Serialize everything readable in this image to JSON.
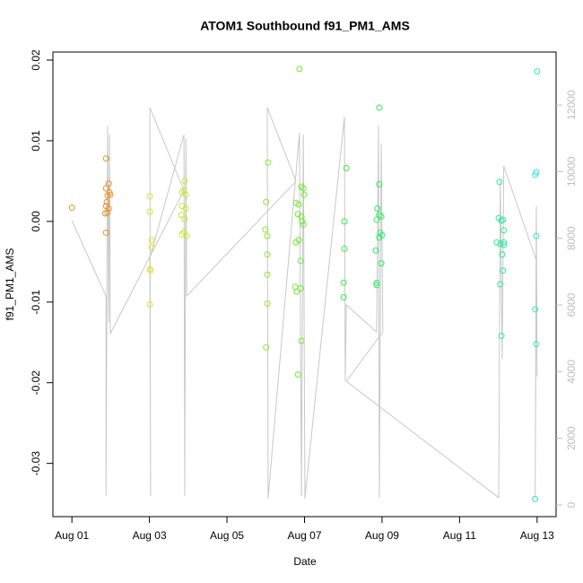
{
  "chart_data": {
    "type": "scatter",
    "title": "ATOM1 Southbound f91_PM1_AMS",
    "x_label": "Date",
    "y_label": "f91_PM1_AMS",
    "xlim": [
      -0.49,
      12.49
    ],
    "ylim": [
      -0.0366,
      0.021
    ],
    "y2lim": [
      -350,
      13590
    ],
    "xticks": [
      {
        "value": 0,
        "label": "Aug 01"
      },
      {
        "value": 2,
        "label": "Aug 03"
      },
      {
        "value": 4,
        "label": "Aug 05"
      },
      {
        "value": 6,
        "label": "Aug 07"
      },
      {
        "value": 8,
        "label": "Aug 09"
      },
      {
        "value": 10,
        "label": "Aug 11"
      },
      {
        "value": 12,
        "label": "Aug 13"
      }
    ],
    "yticks": [
      -0.03,
      -0.02,
      -0.01,
      {
        "value": 0,
        "label": "0.00"
      },
      0.01,
      0.02
    ],
    "y2ticks": [
      0,
      2000,
      4000,
      6000,
      8000,
      10000,
      12000
    ],
    "y2_color": "#bebebe",
    "series": [
      {
        "axis": "y2",
        "color": "#c8c8c8",
        "x": [
          0,
          0.88,
          0.88,
          0.92,
          0.95,
          0.97,
          0.99,
          2.89,
          2.01,
          2.03,
          2.01,
          2.89,
          2.91,
          2.94,
          2.96,
          5.78,
          5.04,
          5.06,
          5.87,
          5.92,
          5.97,
          6.01,
          7.03,
          7.05,
          7.08,
          7.86,
          7.91,
          7.93,
          7.98,
          8.02,
          7.08,
          11.01,
          11.05,
          11.1,
          11.14,
          11.98,
          11.95,
          11.98,
          12.0
        ],
        "values": [
          8530,
          6270,
          270,
          11380,
          5460,
          11110,
          5140,
          9440,
          11920,
          270,
          7400,
          11110,
          270,
          10980,
          6270,
          9710,
          11920,
          190,
          11160,
          270,
          11110,
          190,
          11650,
          3710,
          6000,
          5190,
          11380,
          220,
          10840,
          5190,
          3710,
          220,
          9770,
          4390,
          10170,
          7340,
          220,
          8960,
          3850
        ]
      },
      {
        "color": "#e8902a",
        "x": [
          0,
          0.88,
          0.95,
          0.88,
          0.97,
          0.92,
          0.99,
          0.9,
          0.88,
          0.95,
          0.86,
          0.92,
          0.88
        ],
        "values": [
          0.0017,
          0.0078,
          0.0047,
          0.0041,
          0.0036,
          0.0032,
          0.0033,
          0.0024,
          0.0019,
          0.0016,
          0.001,
          0.0011,
          -0.0014
        ]
      },
      {
        "color": "#e0e030",
        "x": [
          2.01,
          2.01,
          2.06,
          2.06,
          2.01,
          2.03,
          2.01
        ],
        "values": [
          0.0031,
          0.0012,
          -0.0023,
          -0.0032,
          -0.0059,
          -0.0061,
          -0.0103
        ]
      },
      {
        "color": "#cce830",
        "x": [
          2.91,
          2.89,
          2.84,
          2.94,
          2.84,
          2.94,
          2.82,
          2.91,
          2.89,
          2.84,
          2.96
        ],
        "values": [
          0.005,
          0.0038,
          0.0036,
          0.0033,
          0.0019,
          0.0016,
          0.0008,
          0.0003,
          -0.0013,
          -0.0016,
          -0.0018
        ]
      },
      {
        "color": "#90e830",
        "x": [
          5.06,
          5.01,
          4.99,
          5.04,
          5.04,
          5.04,
          5.04,
          5.01
        ],
        "values": [
          0.0073,
          0.0024,
          -0.001,
          -0.0018,
          -0.0041,
          -0.0066,
          -0.0102,
          -0.0156
        ]
      },
      {
        "color": "#70ea30",
        "x": [
          5.87,
          5.78,
          5.85,
          5.92,
          5.97,
          5.99,
          5.83,
          5.92,
          5.94,
          5.97,
          5.78,
          5.85,
          5.9,
          5.76,
          5.8,
          5.9,
          5.92,
          5.83
        ],
        "values": [
          0.0189,
          0.0023,
          0.0021,
          0.0043,
          0.0041,
          0.0033,
          0.0009,
          0.0006,
          0,
          -0.0004,
          -0.0026,
          -0.0023,
          -0.0049,
          -0.0081,
          -0.0087,
          -0.0083,
          -0.0148,
          -0.019
        ]
      },
      {
        "color": "#40ea40",
        "x": [
          7.08,
          7.03,
          7.03,
          7.01,
          7.01
        ],
        "values": [
          0.0066,
          0,
          -0.0034,
          -0.0076,
          -0.0094
        ]
      },
      {
        "color": "#30ea60",
        "x": [
          7.93,
          7.93,
          7.88,
          7.93,
          7.98,
          7.86,
          7.95,
          8.0,
          7.93,
          7.84,
          7.98,
          7.86,
          7.86
        ],
        "values": [
          0.0141,
          0.0046,
          0.0016,
          0.0008,
          0.0006,
          0.0002,
          -0.0014,
          -0.0017,
          -0.002,
          -0.0036,
          -0.0052,
          -0.0076,
          -0.0079
        ]
      },
      {
        "color": "#30eaa0",
        "x": [
          11.03,
          11.01,
          11.12,
          11.08,
          11.14,
          10.96,
          11.05,
          11.14,
          11.14,
          11.1,
          11.12,
          11.05,
          11.08
        ],
        "values": [
          0.0049,
          0.0004,
          0.0002,
          0.0001,
          -0.0011,
          -0.0026,
          -0.0028,
          -0.0026,
          -0.0029,
          -0.0041,
          -0.0061,
          -0.0078,
          -0.0142
        ]
      },
      {
        "color": "#30eac8",
        "x": [
          12.0,
          11.98,
          11.95,
          11.98,
          11.95,
          11.98,
          11.95
        ],
        "values": [
          0.0186,
          0.0061,
          0.0058,
          -0.0018,
          -0.0109,
          -0.0152,
          -0.0344
        ]
      }
    ]
  }
}
